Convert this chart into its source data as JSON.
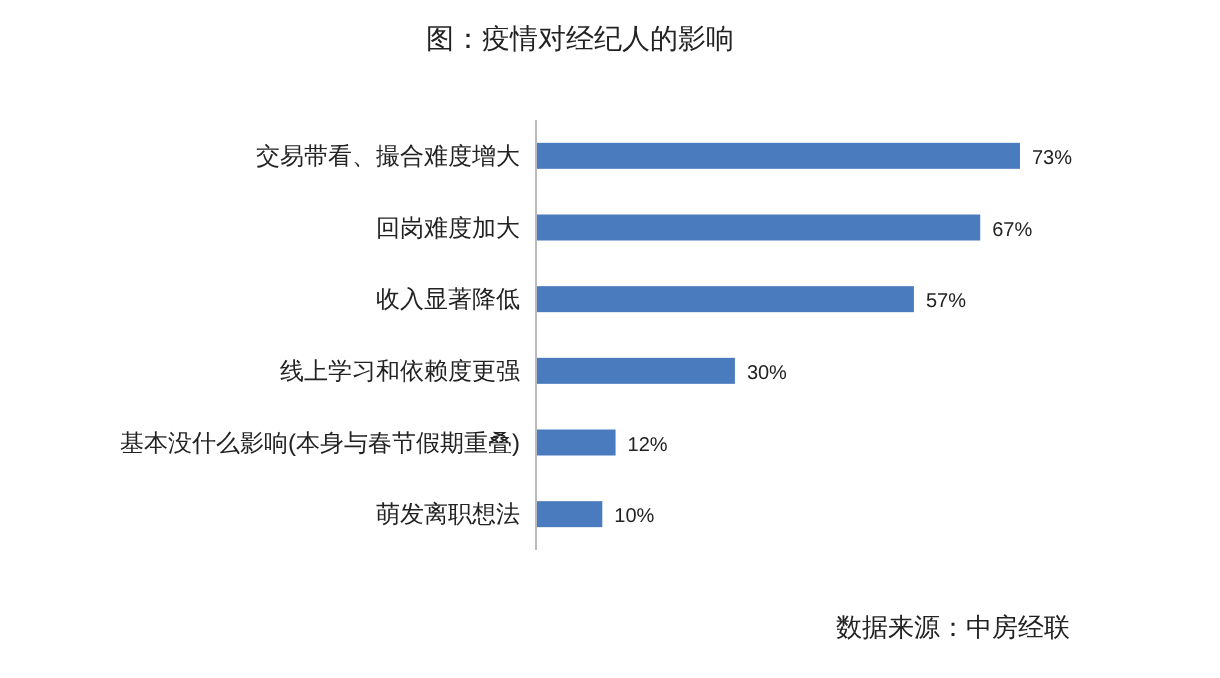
{
  "chart_data": {
    "type": "bar",
    "orientation": "horizontal",
    "title": "图：疫情对经纪人的影响",
    "categories": [
      "交易带看、撮合难度增大",
      "回岗难度加大",
      "收入显著降低",
      "线上学习和依赖度更强",
      "基本没什么影响(本身与春节假期重叠)",
      "萌发离职想法"
    ],
    "values": [
      73,
      67,
      57,
      30,
      12,
      10
    ],
    "value_labels": [
      "73%",
      "67%",
      "57%",
      "30%",
      "12%",
      "10%"
    ],
    "color": "#4a7bbf",
    "tick_labels": "y",
    "annotations": [
      "数据来源：中房经联"
    ]
  }
}
